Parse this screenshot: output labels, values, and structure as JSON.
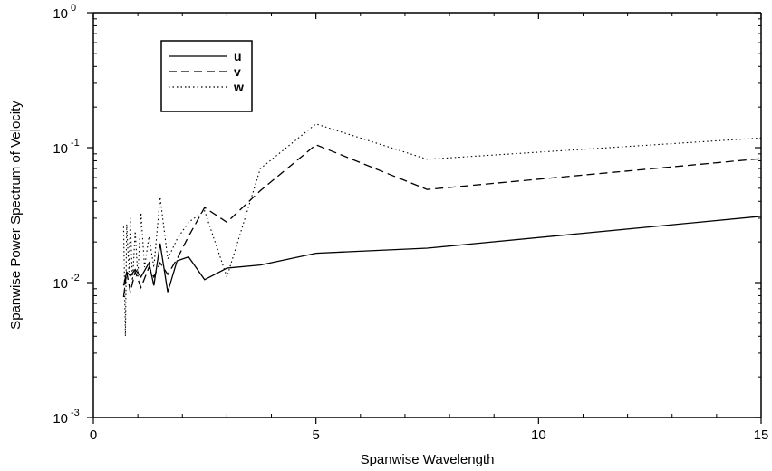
{
  "chart_data": {
    "type": "line",
    "title": "",
    "xlabel": "Spanwise Wavelength",
    "ylabel": "Spanwise Power Spectrum of Velocity",
    "xlim": [
      0,
      15
    ],
    "ylim": [
      0.001,
      1
    ],
    "yscale": "log",
    "grid": false,
    "legend_position": "top-left",
    "x_ticks": [
      {
        "value": 0,
        "label": "0"
      },
      {
        "value": 5,
        "label": "5"
      },
      {
        "value": 10,
        "label": "10"
      },
      {
        "value": 15,
        "label": "15"
      }
    ],
    "y_ticks": [
      {
        "value": 1,
        "base": "10",
        "exp": "0"
      },
      {
        "value": 0.1,
        "base": "10",
        "exp": "-1"
      },
      {
        "value": 0.01,
        "base": "10",
        "exp": "-2"
      },
      {
        "value": 0.001,
        "base": "10",
        "exp": "-3"
      }
    ],
    "series": [
      {
        "name": "u",
        "style": "solid",
        "x": [
          0.68,
          0.75,
          0.83,
          0.94,
          1.07,
          1.25,
          1.36,
          1.5,
          1.67,
          1.88,
          2.14,
          2.5,
          3.0,
          3.75,
          5.0,
          7.5,
          15.0
        ],
        "y": [
          0.0095,
          0.012,
          0.0112,
          0.0125,
          0.011,
          0.014,
          0.0095,
          0.0195,
          0.0085,
          0.0145,
          0.0155,
          0.0105,
          0.0128,
          0.0135,
          0.0165,
          0.018,
          0.031
        ]
      },
      {
        "name": "v",
        "style": "dashed",
        "x": [
          0.68,
          0.75,
          0.83,
          0.94,
          1.07,
          1.25,
          1.36,
          1.5,
          1.67,
          1.88,
          2.14,
          2.5,
          3.0,
          3.75,
          5.0,
          7.5,
          15.0
        ],
        "y": [
          0.0078,
          0.012,
          0.0085,
          0.012,
          0.0092,
          0.013,
          0.011,
          0.014,
          0.0115,
          0.015,
          0.022,
          0.036,
          0.028,
          0.048,
          0.105,
          0.049,
          0.083
        ]
      },
      {
        "name": "w",
        "style": "dotted",
        "x": [
          0.68,
          0.72,
          0.75,
          0.8,
          0.83,
          0.88,
          0.94,
          1.0,
          1.07,
          1.15,
          1.25,
          1.36,
          1.5,
          1.67,
          1.88,
          2.14,
          2.5,
          3.0,
          3.75,
          5.0,
          7.5,
          15.0
        ],
        "y": [
          0.026,
          0.004,
          0.027,
          0.012,
          0.03,
          0.01,
          0.024,
          0.011,
          0.033,
          0.013,
          0.022,
          0.013,
          0.043,
          0.015,
          0.021,
          0.028,
          0.034,
          0.011,
          0.07,
          0.15,
          0.082,
          0.118
        ]
      }
    ]
  }
}
